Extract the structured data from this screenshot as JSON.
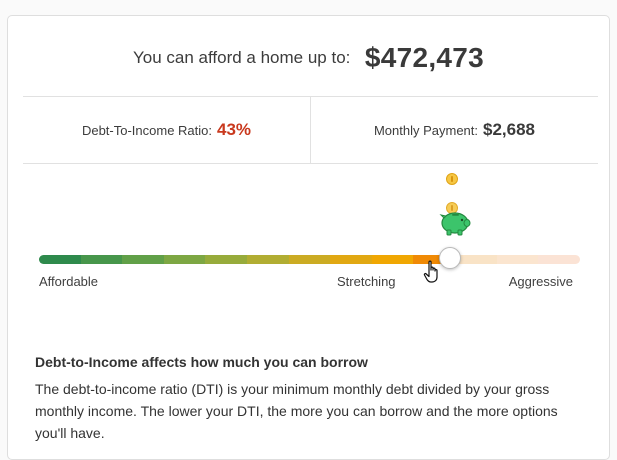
{
  "affordability": {
    "label": "You can afford a home up to:",
    "amount": "$472,473"
  },
  "stats": {
    "dti_label": "Debt-To-Income Ratio:",
    "dti_value": "43%",
    "payment_label": "Monthly Payment:",
    "payment_value": "$2,688"
  },
  "gauge": {
    "position_fraction": 0.76,
    "labels": {
      "left": "Affordable",
      "middle": "Stretching",
      "right": "Aggressive"
    },
    "segments": [
      "#2e8a4c",
      "#47964b",
      "#61a048",
      "#7da743",
      "#97ab3b",
      "#b1ad32",
      "#cbab23",
      "#e1a812",
      "#f0a702",
      "#f08a05",
      "#f9e3c6",
      "#fbe5cf",
      "#fbe3d5"
    ],
    "icons": [
      "coin-icon",
      "piggy-bank-icon",
      "hand-pointer-cursor-icon"
    ]
  },
  "info": {
    "title": "Debt-to-Income affects how much you can borrow",
    "body": "The debt-to-income ratio (DTI) is your minimum monthly debt divided by your gross monthly income. The lower your DTI, the more you can borrow and the more options you'll have."
  }
}
